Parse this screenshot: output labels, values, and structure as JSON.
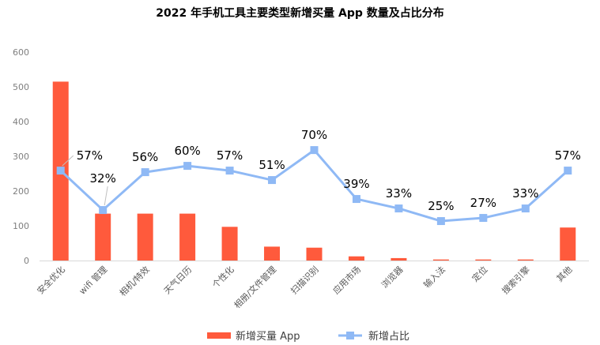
{
  "chart_data": {
    "type": "bar",
    "title": "2022 年手机工具主要类型新增买量 App 数量及占比分布",
    "categories": [
      "安全优化",
      "wifi 管理",
      "相机/特效",
      "天气日历",
      "个性化",
      "相册/文件管理",
      "扫描识别",
      "应用市场",
      "浏览器",
      "输入法",
      "定位",
      "搜索引擎",
      "其他"
    ],
    "ylim": [
      0,
      600
    ],
    "yticks": [
      0,
      100,
      200,
      300,
      400,
      500,
      600
    ],
    "grid": false,
    "legend_position": "bottom",
    "series": [
      {
        "name": "新增买量 App",
        "type": "bar",
        "color": "#ff5a3c",
        "values": [
          515,
          135,
          135,
          135,
          97,
          40,
          37,
          12,
          7,
          3,
          3,
          3,
          95
        ]
      },
      {
        "name": "新增占比",
        "type": "line",
        "color": "#8fb9f5",
        "values": [
          57,
          32,
          56,
          60,
          57,
          51,
          70,
          39,
          33,
          25,
          27,
          33,
          57
        ],
        "labels": [
          "57%",
          "32%",
          "56%",
          "60%",
          "57%",
          "51%",
          "70%",
          "39%",
          "33%",
          "25%",
          "27%",
          "33%",
          "57%"
        ],
        "unit": "%"
      }
    ]
  }
}
